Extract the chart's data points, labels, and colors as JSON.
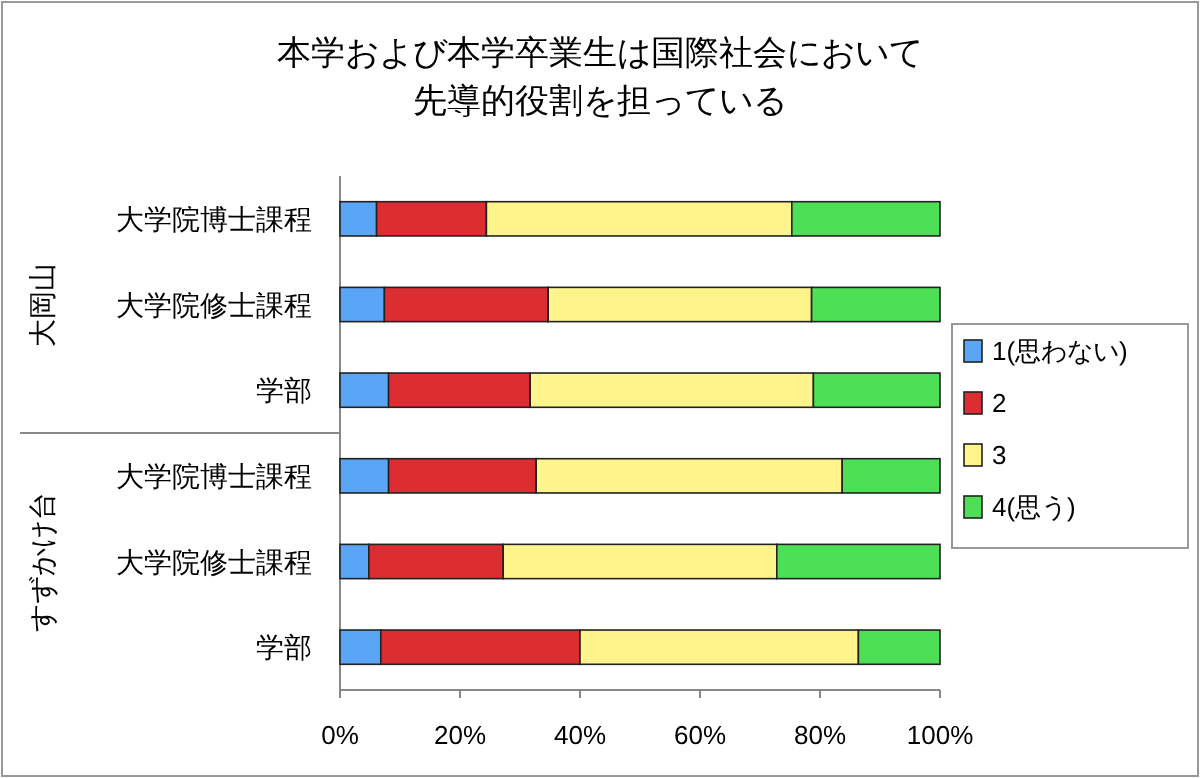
{
  "chart_data": {
    "type": "bar",
    "orientation": "horizontal",
    "stacked": true,
    "title": "本学および本学卒業生は国際社会において先導的役割を担っている",
    "categories": [
      "大学院博士課程",
      "大学院修士課程",
      "学部",
      "大学院博士課程",
      "大学院修士課程",
      "学部"
    ],
    "annotations": [
      "大岡山",
      "すずかけ台"
    ],
    "series": [
      {
        "name": "1(思わない)",
        "color": "#5aa5f5",
        "values": [
          6.1,
          7.4,
          8.1,
          8.1,
          4.8,
          6.8
        ]
      },
      {
        "name": "2",
        "color": "#dc2d32",
        "values": [
          18.3,
          27.3,
          23.6,
          24.6,
          22.4,
          33.2
        ]
      },
      {
        "name": "3",
        "color": "#fff38c",
        "values": [
          50.9,
          43.9,
          47.2,
          51.0,
          45.6,
          46.4
        ]
      },
      {
        "name": "4(思う)",
        "color": "#4ddf55",
        "values": [
          24.7,
          21.4,
          21.1,
          16.3,
          27.2,
          13.6
        ]
      }
    ],
    "xlim": [
      0,
      100
    ],
    "xticks": [
      {
        "value": 0,
        "label": "0%"
      },
      {
        "value": 20,
        "label": "20%"
      },
      {
        "value": 40,
        "label": "40%"
      },
      {
        "value": 60,
        "label": "60%"
      },
      {
        "value": 80,
        "label": "80%"
      },
      {
        "value": 100,
        "label": "100%"
      }
    ],
    "grid": false,
    "legend": "right"
  }
}
